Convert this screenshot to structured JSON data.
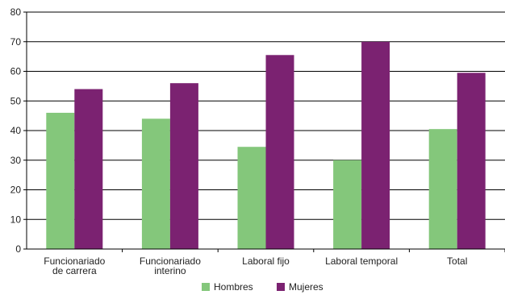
{
  "chart_data": {
    "type": "bar",
    "categories": [
      [
        "Funcionariado",
        "de carrera"
      ],
      [
        "Funcionariado",
        "interino"
      ],
      [
        "Laboral fijo"
      ],
      [
        "Laboral temporal"
      ],
      [
        "Total"
      ]
    ],
    "series": [
      {
        "name": "Hombres",
        "color": "#84c77b",
        "values": [
          46,
          44,
          34.5,
          30,
          40.5
        ]
      },
      {
        "name": "Mujeres",
        "color": "#7b2271",
        "values": [
          54,
          56,
          65.5,
          70,
          59.5
        ]
      }
    ],
    "ylim": [
      0,
      80
    ],
    "yticks": [
      0,
      10,
      20,
      30,
      40,
      50,
      60,
      70,
      80
    ],
    "grid": true,
    "legend_position": "bottom-center"
  }
}
